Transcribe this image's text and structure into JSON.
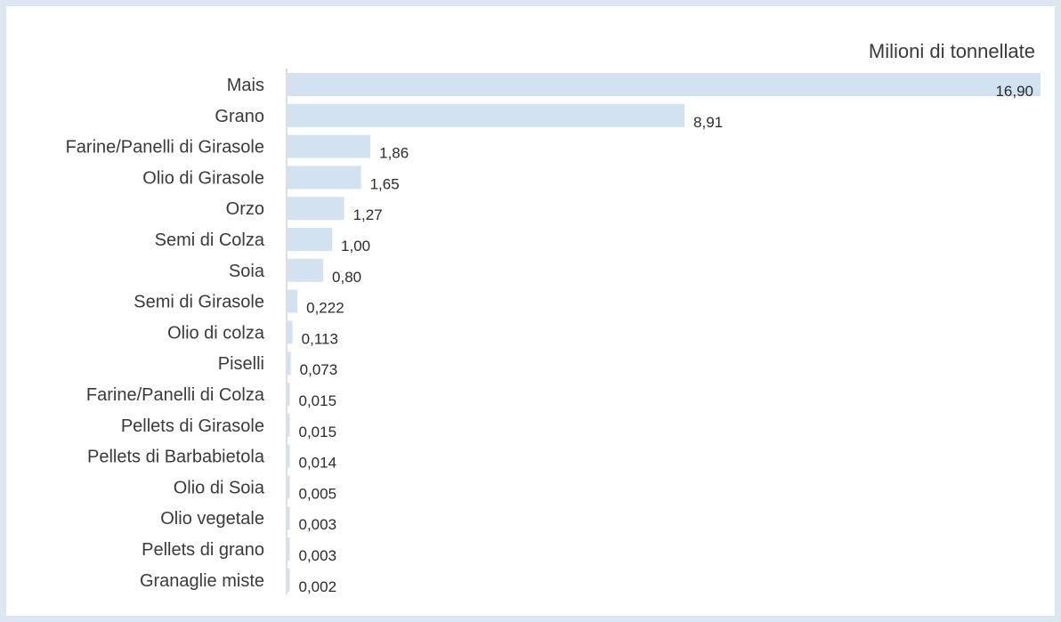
{
  "chart_data": {
    "type": "bar",
    "orientation": "horizontal",
    "unit_label": "Milioni di tonnellate",
    "categories": [
      "Mais",
      "Grano",
      "Farine/Panelli di Girasole",
      "Olio di Girasole",
      "Orzo",
      "Semi di Colza",
      "Soia",
      "Semi di Girasole",
      "Olio di colza",
      "Piselli",
      "Farine/Panelli di Colza",
      "Pellets di Girasole",
      "Pellets di Barbabietola",
      "Olio di Soia",
      "Olio vegetale",
      "Pellets di grano",
      "Granaglie miste"
    ],
    "values": [
      16.9,
      8.91,
      1.86,
      1.65,
      1.27,
      1.0,
      0.8,
      0.222,
      0.113,
      0.073,
      0.015,
      0.015,
      0.014,
      0.005,
      0.003,
      0.003,
      0.002
    ],
    "value_labels": [
      "16,90",
      "8,91",
      "1,86",
      "1,65",
      "1,27",
      "1,00",
      "0,80",
      "0,222",
      "0,113",
      "0,073",
      "0,015",
      "0,015",
      "0,014",
      "0,005",
      "0,003",
      "0,003",
      "0,002"
    ],
    "xlim": [
      0,
      16.9
    ],
    "bar_color": "#d3e2f0",
    "grid": false
  }
}
